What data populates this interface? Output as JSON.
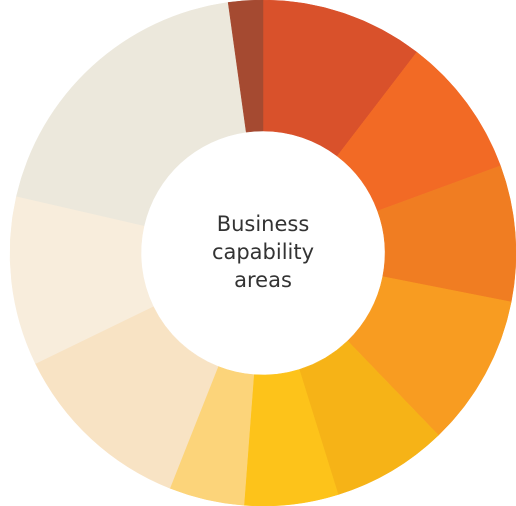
{
  "chart_data": {
    "type": "donut",
    "title": "Business capability areas",
    "categories": [
      null,
      null,
      null,
      null,
      null,
      null,
      null,
      null,
      null,
      null,
      null
    ],
    "values": [
      10.4,
      9.0,
      8.7,
      9.7,
      7.4,
      6.0,
      4.8,
      11.8,
      10.8,
      19.2,
      2.2
    ],
    "colors": [
      "#d9512b",
      "#f26a25",
      "#f07d22",
      "#f89c21",
      "#f6b317",
      "#fdc31a",
      "#fcd47a",
      "#f8e3c4",
      "#f8eddc",
      "#ece8dc",
      "#a54a31"
    ]
  }
}
